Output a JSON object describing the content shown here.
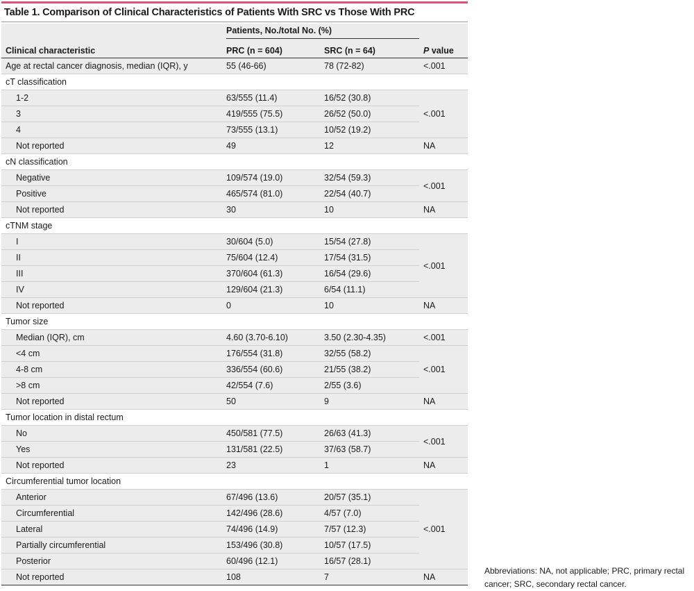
{
  "title": "Table 1. Comparison of Clinical Characteristics of Patients With SRC vs Those With PRC",
  "header": {
    "group_label": "Patients, No./total No. (%)",
    "col_characteristic": "Clinical characteristic",
    "col_prc": "PRC (n = 604)",
    "col_src": "SRC (n = 64)",
    "col_p_italic": "P",
    "col_p_rest": " value"
  },
  "rows": {
    "age": {
      "label": "Age at rectal cancer diagnosis, median (IQR), y",
      "prc": "55 (46-66)",
      "src": "78 (72-82)",
      "p": "<.001"
    },
    "ct": {
      "label": "cT classification",
      "r1": {
        "label": "1-2",
        "prc": "63/555 (11.4)",
        "src": "16/52 (30.8)"
      },
      "r2": {
        "label": "3",
        "prc": "419/555 (75.5)",
        "src": "26/52 (50.0)"
      },
      "r3": {
        "label": "4",
        "prc": "73/555 (13.1)",
        "src": "10/52 (19.2)"
      },
      "p": "<.001",
      "nr": {
        "label": "Not reported",
        "prc": "49",
        "src": "12",
        "p": "NA"
      }
    },
    "cn": {
      "label": "cN classification",
      "r1": {
        "label": "Negative",
        "prc": "109/574 (19.0)",
        "src": "32/54 (59.3)"
      },
      "r2": {
        "label": "Positive",
        "prc": "465/574 (81.0)",
        "src": "22/54 (40.7)"
      },
      "p": "<.001",
      "nr": {
        "label": "Not reported",
        "prc": "30",
        "src": "10",
        "p": "NA"
      }
    },
    "ctnm": {
      "label": "cTNM stage",
      "r1": {
        "label": "I",
        "prc": "30/604 (5.0)",
        "src": "15/54 (27.8)"
      },
      "r2": {
        "label": "II",
        "prc": "75/604 (12.4)",
        "src": "17/54 (31.5)"
      },
      "r3": {
        "label": "III",
        "prc": "370/604 (61.3)",
        "src": "16/54 (29.6)"
      },
      "r4": {
        "label": "IV",
        "prc": "129/604 (21.3)",
        "src": "6/54 (11.1)"
      },
      "p": "<.001",
      "nr": {
        "label": "Not reported",
        "prc": "0",
        "src": "10",
        "p": "NA"
      }
    },
    "size": {
      "label": "Tumor size",
      "median": {
        "label": "Median (IQR), cm",
        "prc": "4.60 (3.70-6.10)",
        "src": "3.50 (2.30-4.35)",
        "p": "<.001"
      },
      "r1": {
        "label": "<4 cm",
        "prc": "176/554 (31.8)",
        "src": "32/55 (58.2)"
      },
      "r2": {
        "label": "4-8 cm",
        "prc": "336/554 (60.6)",
        "src": "21/55 (38.2)"
      },
      "r3": {
        "label": ">8 cm",
        "prc": "42/554 (7.6)",
        "src": "2/55 (3.6)"
      },
      "p": "<.001",
      "nr": {
        "label": "Not reported",
        "prc": "50",
        "src": "9",
        "p": "NA"
      }
    },
    "distal": {
      "label": "Tumor location in distal rectum",
      "r1": {
        "label": "No",
        "prc": "450/581 (77.5)",
        "src": "26/63 (41.3)"
      },
      "r2": {
        "label": "Yes",
        "prc": "131/581 (22.5)",
        "src": "37/63 (58.7)"
      },
      "p": "<.001",
      "nr": {
        "label": "Not reported",
        "prc": "23",
        "src": "1",
        "p": "NA"
      }
    },
    "circ": {
      "label": "Circumferential tumor location",
      "r1": {
        "label": "Anterior",
        "prc": "67/496 (13.6)",
        "src": "20/57 (35.1)"
      },
      "r2": {
        "label": "Circumferential",
        "prc": "142/496 (28.6)",
        "src": "4/57 (7.0)"
      },
      "r3": {
        "label": "Lateral",
        "prc": "74/496 (14.9)",
        "src": "7/57 (12.3)"
      },
      "r4": {
        "label": "Partially circumferential",
        "prc": "153/496 (30.8)",
        "src": "10/57 (17.5)"
      },
      "r5": {
        "label": "Posterior",
        "prc": "60/496 (12.1)",
        "src": "16/57 (28.1)"
      },
      "p": "<.001",
      "nr": {
        "label": "Not reported",
        "prc": "108",
        "src": "7",
        "p": "NA"
      }
    }
  },
  "footnote": "Abbreviations: NA, not applicable; PRC, primary rectal cancer; SRC, secondary rectal cancer."
}
